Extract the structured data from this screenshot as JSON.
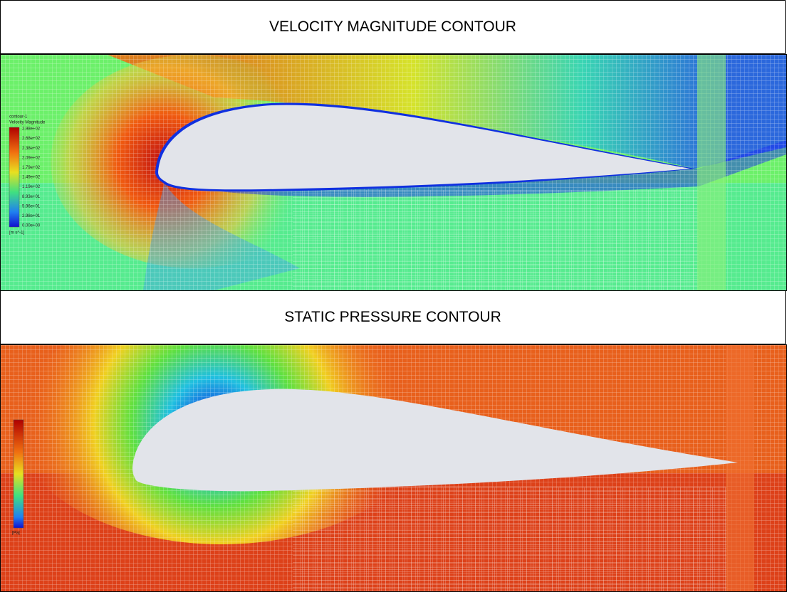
{
  "sections": [
    {
      "title": "VELOCITY MAGNITUDE CONTOUR",
      "legend": {
        "name": "contour-1",
        "quantity": "Velocity Magnitude",
        "labels": [
          "2.98e+02",
          "2.68e+02",
          "2.38e+02",
          "2.09e+02",
          "1.79e+02",
          "1.49e+02",
          "1.19e+02",
          "8.93e+01",
          "5.96e+01",
          "2.98e+01",
          "0.00e+00"
        ],
        "unit": "[m s^-1]"
      }
    },
    {
      "title": "STATIC PRESSURE CONTOUR",
      "legend": {
        "unit": "[Pa]"
      }
    }
  ]
}
